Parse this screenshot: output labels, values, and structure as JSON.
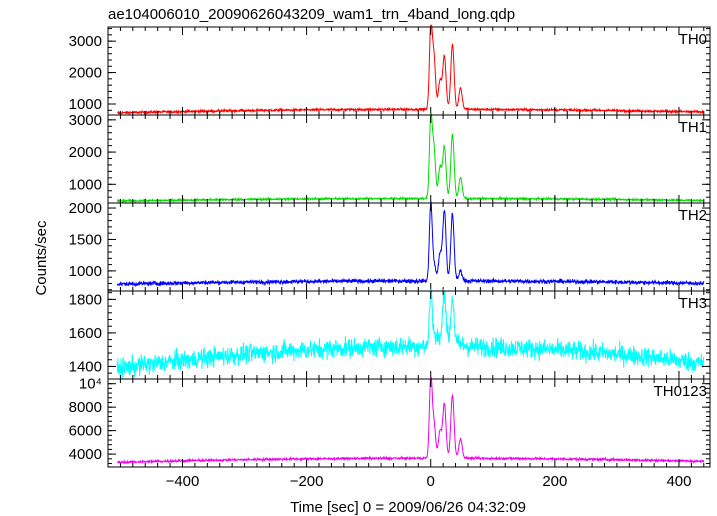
{
  "title": "ae104006010_20090626043209_wam1_trn_4band_long.qdp",
  "xlabel": "Time [sec] 0 = 2009/06/26 04:32:09",
  "ylabel": "Counts/sec",
  "chart_data": {
    "type": "line",
    "title": "ae104006010_20090626043209_wam1_trn_4band_long.qdp",
    "xlabel": "Time [sec] 0 = 2009/06/26 04:32:09",
    "ylabel": "Counts/sec",
    "xlim": [
      -520,
      450
    ],
    "x_ticks": [
      -400,
      -200,
      0,
      200,
      400
    ],
    "x_tick_labels": [
      "−400",
      "−200",
      "0",
      "200",
      "400"
    ],
    "grid": false,
    "panels": [
      {
        "name": "TH0",
        "color": "#ff0000",
        "ylim": [
          650,
          3450
        ],
        "y_ticks": [
          1000,
          2000,
          3000
        ],
        "y_tick_labels": [
          "1000",
          "2000",
          "3000"
        ],
        "baseline_edge": 720,
        "baseline_center": 830,
        "noise": 35,
        "peaks": [
          [
            0,
            3350
          ],
          [
            5,
            2500
          ],
          [
            15,
            1700
          ],
          [
            22,
            2500
          ],
          [
            35,
            2900
          ],
          [
            48,
            1500
          ]
        ]
      },
      {
        "name": "TH1",
        "color": "#00dd00",
        "ylim": [
          420,
          3150
        ],
        "y_ticks": [
          1000,
          2000,
          3000
        ],
        "y_tick_labels": [
          "1000",
          "2000",
          "3000"
        ],
        "baseline_edge": 480,
        "baseline_center": 560,
        "noise": 28,
        "peaks": [
          [
            0,
            2950
          ],
          [
            5,
            2100
          ],
          [
            15,
            1500
          ],
          [
            22,
            2150
          ],
          [
            35,
            2550
          ],
          [
            48,
            1200
          ]
        ]
      },
      {
        "name": "TH2",
        "color": "#0000ff",
        "ylim": [
          680,
          2080
        ],
        "y_ticks": [
          1000,
          1500,
          2000
        ],
        "y_tick_labels": [
          "1000",
          "1500",
          "2000"
        ],
        "baseline_edge": 790,
        "baseline_center": 840,
        "noise": 30,
        "peaks": [
          [
            0,
            2050
          ],
          [
            5,
            1100
          ],
          [
            15,
            1250
          ],
          [
            22,
            1950
          ],
          [
            35,
            1900
          ],
          [
            48,
            1000
          ]
        ]
      },
      {
        "name": "TH3",
        "color": "#00ffff",
        "ylim": [
          1325,
          1850
        ],
        "y_ticks": [
          1400,
          1600,
          1800
        ],
        "y_tick_labels": [
          "1400",
          "1600",
          "1800"
        ],
        "baseline_edge": 1390,
        "baseline_center": 1520,
        "noise": 55,
        "peaks": [
          [
            0,
            1830
          ],
          [
            22,
            1820
          ],
          [
            35,
            1790
          ]
        ]
      },
      {
        "name": "TH0123",
        "color": "#ee00ee",
        "ylim": [
          2900,
          10400
        ],
        "y_ticks": [
          4000,
          6000,
          8000,
          10000
        ],
        "y_tick_labels": [
          "4000",
          "6000",
          "8000",
          "10⁴"
        ],
        "baseline_edge": 3300,
        "baseline_center": 3650,
        "noise": 90,
        "peaks": [
          [
            0,
            10300
          ],
          [
            5,
            6500
          ],
          [
            15,
            5800
          ],
          [
            22,
            8200
          ],
          [
            35,
            9000
          ],
          [
            48,
            5300
          ]
        ]
      }
    ]
  }
}
